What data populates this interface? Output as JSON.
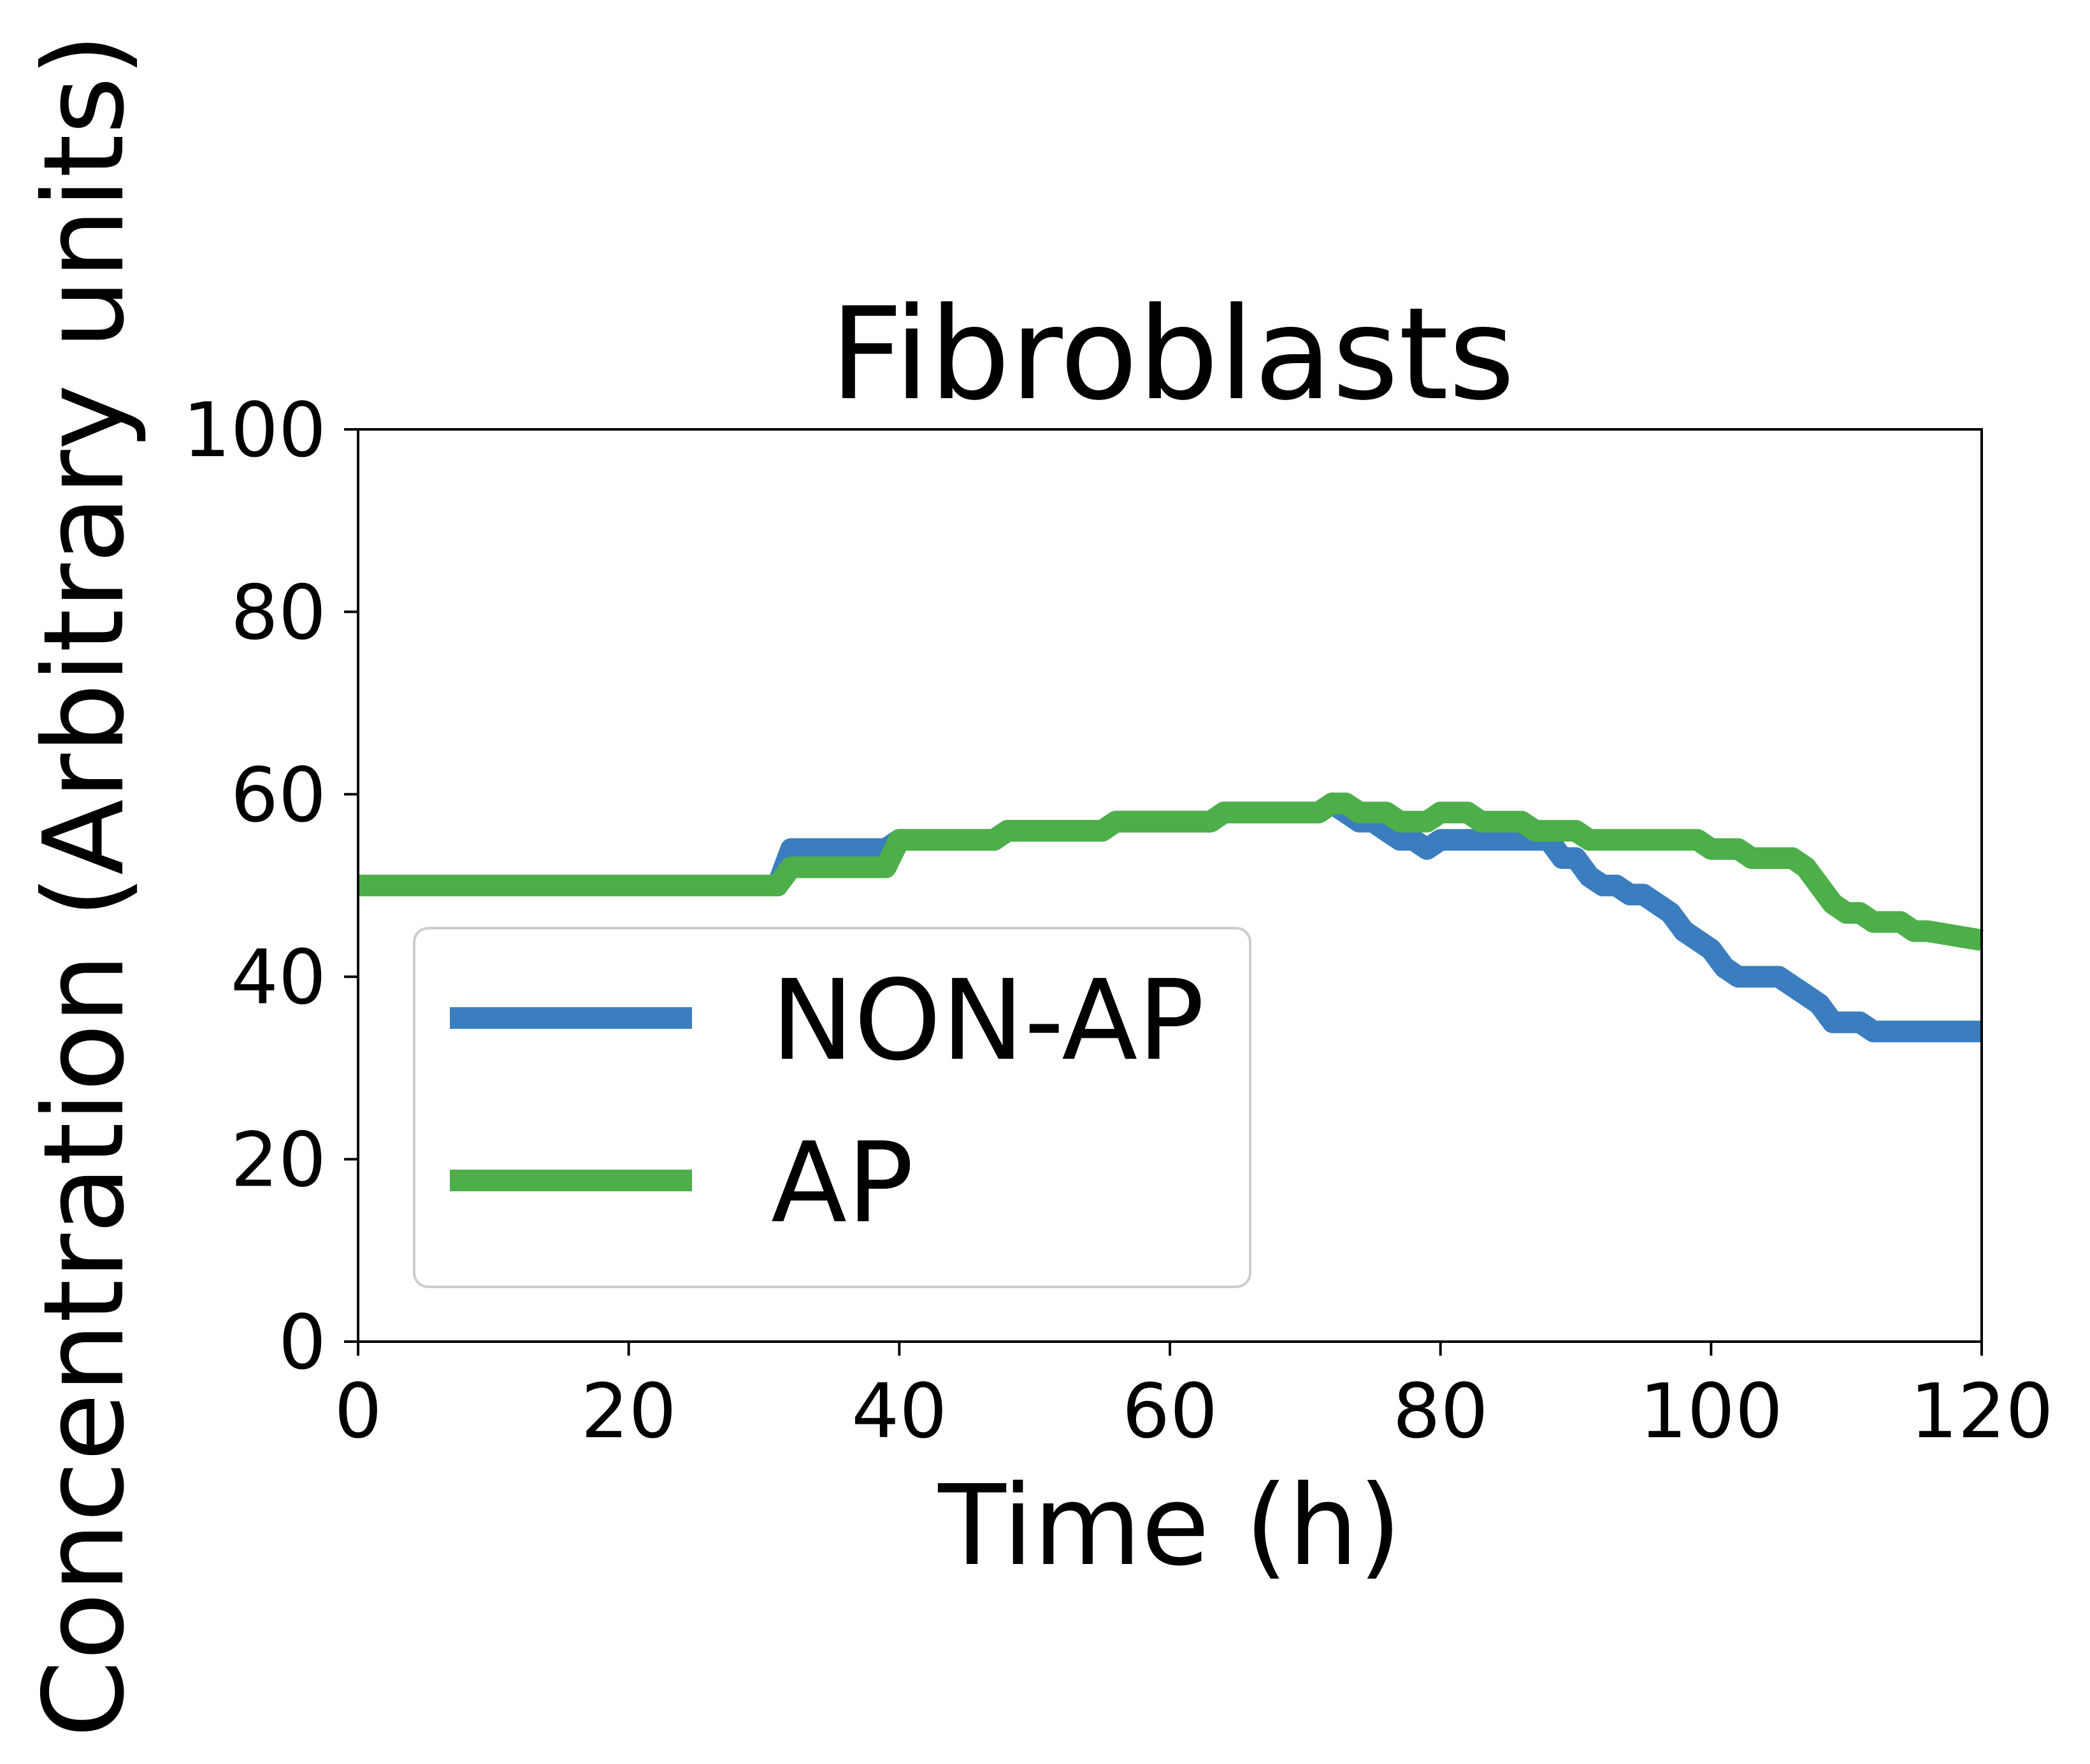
{
  "chart_data": {
    "type": "line",
    "title": "Fibroblasts",
    "xlabel": "Time (h)",
    "ylabel": "Concentration (Arbitrary units)",
    "xlim": [
      0,
      120
    ],
    "ylim": [
      0,
      100
    ],
    "xticks": [
      0,
      20,
      40,
      60,
      80,
      100,
      120
    ],
    "yticks": [
      0,
      20,
      40,
      60,
      80,
      100
    ],
    "grid": false,
    "legend_position": "lower-left",
    "series": [
      {
        "name": "NON-AP",
        "color": "#3a7ebf",
        "x": [
          0,
          31,
          32,
          39,
          40,
          47,
          48,
          55,
          56,
          63,
          64,
          71,
          72,
          73,
          74,
          75,
          76,
          77,
          78,
          79,
          80,
          81,
          82,
          83,
          84,
          85,
          86,
          87,
          88,
          89,
          90,
          91,
          92,
          93,
          94,
          95,
          96,
          97,
          98,
          99,
          100,
          101,
          102,
          103,
          104,
          105,
          106,
          107,
          108,
          109,
          110,
          111,
          112,
          120
        ],
        "y": [
          50,
          50,
          54,
          54,
          55,
          55,
          56,
          56,
          57,
          57,
          58,
          58,
          59,
          58,
          57,
          57,
          56,
          55,
          55,
          54,
          55,
          55,
          55,
          55,
          55,
          55,
          55,
          55,
          55,
          53,
          53,
          51,
          50,
          50,
          49,
          49,
          48,
          47,
          45,
          44,
          43,
          41,
          40,
          40,
          40,
          40,
          39,
          38,
          37,
          35,
          35,
          35,
          34,
          34
        ]
      },
      {
        "name": "AP",
        "color": "#4daf4a",
        "x": [
          0,
          31,
          32,
          39,
          40,
          47,
          48,
          55,
          56,
          63,
          64,
          71,
          72,
          73,
          74,
          75,
          76,
          77,
          78,
          79,
          80,
          81,
          82,
          83,
          84,
          85,
          86,
          87,
          88,
          89,
          90,
          91,
          92,
          93,
          94,
          95,
          96,
          97,
          98,
          99,
          100,
          101,
          102,
          103,
          104,
          105,
          106,
          107,
          108,
          109,
          110,
          111,
          112,
          113,
          114,
          115,
          116,
          120
        ],
        "y": [
          50,
          50,
          52,
          52,
          55,
          55,
          56,
          56,
          57,
          57,
          58,
          58,
          59,
          59,
          58,
          58,
          58,
          57,
          57,
          57,
          58,
          58,
          58,
          57,
          57,
          57,
          57,
          56,
          56,
          56,
          56,
          55,
          55,
          55,
          55,
          55,
          55,
          55,
          55,
          55,
          54,
          54,
          54,
          53,
          53,
          53,
          53,
          52,
          50,
          48,
          47,
          47,
          46,
          46,
          46,
          45,
          45,
          44
        ]
      }
    ]
  }
}
